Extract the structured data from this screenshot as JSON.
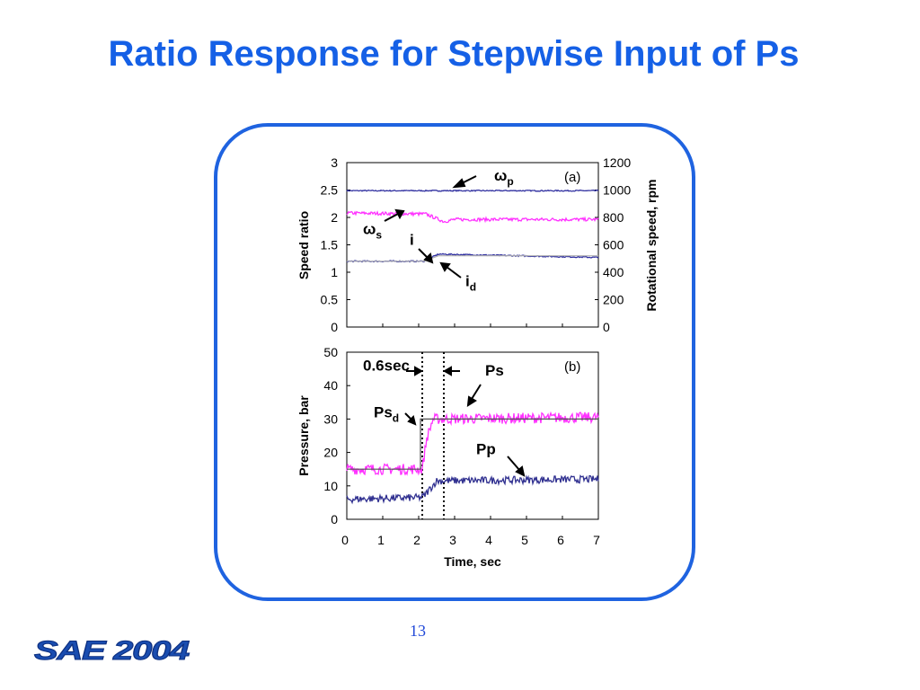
{
  "slide": {
    "title": "Ratio Response for Stepwise Input of Ps",
    "page_number": "13",
    "logo_text": "SAE 2004"
  },
  "chart_data": [
    {
      "id": "a",
      "type": "line",
      "panel_label": "(a)",
      "x_range": [
        0,
        7
      ],
      "ylabel": "Speed ratio",
      "ylim": [
        0,
        3
      ],
      "yticks": [
        "0",
        "0.5",
        "1",
        "1.5",
        "2",
        "2.5",
        "3"
      ],
      "y2label": "Rotational speed,  rpm",
      "y2lim": [
        0,
        1200
      ],
      "y2ticks": [
        "0",
        "200",
        "400",
        "600",
        "800",
        "1000",
        "1200"
      ],
      "series": [
        {
          "key": "omega_p",
          "axis": "y2",
          "color": "#3030a0",
          "x": [
            0,
            7
          ],
          "y": [
            995,
            995
          ],
          "noise": 4
        },
        {
          "key": "omega_s",
          "axis": "y2",
          "color": "#ff30ff",
          "x": [
            0,
            2.2,
            2.7,
            3.0,
            7
          ],
          "y": [
            832,
            825,
            770,
            785,
            785
          ],
          "noise": 12
        },
        {
          "key": "i",
          "axis": "y",
          "color": "#3030a0",
          "x": [
            0,
            2.15,
            2.55,
            7
          ],
          "y": [
            1.2,
            1.2,
            1.33,
            1.27
          ],
          "noise": 0.012
        },
        {
          "key": "i_d",
          "axis": "y",
          "color": "#b0b0b0",
          "x": [
            0,
            2.15,
            2.55,
            7
          ],
          "y": [
            1.2,
            1.2,
            1.3,
            1.3
          ],
          "noise": 0
        }
      ],
      "annotations": [
        {
          "symbol": "ω",
          "sub": "p",
          "x": 4.1,
          "y": 2.67,
          "axis": "y"
        },
        {
          "symbol": "ω",
          "sub": "s",
          "x": 0.45,
          "y": 1.7,
          "axis": "y"
        },
        {
          "symbol": "i",
          "sub": "",
          "x": 1.75,
          "y": 1.5,
          "axis": "y"
        },
        {
          "symbol": "i",
          "sub": "d",
          "x": 3.3,
          "y": 0.75,
          "axis": "y"
        }
      ]
    },
    {
      "id": "b",
      "type": "line",
      "panel_label": "(b)",
      "xlabel": "Time, sec",
      "xlim": [
        0,
        7
      ],
      "xticks": [
        "0",
        "1",
        "2",
        "3",
        "4",
        "5",
        "6",
        "7"
      ],
      "ylabel": "Pressure, bar",
      "ylim": [
        0,
        50
      ],
      "yticks": [
        "0",
        "10",
        "20",
        "30",
        "40",
        "50"
      ],
      "series": [
        {
          "key": "Ps",
          "color": "#ff30ff",
          "x": [
            0,
            2.1,
            2.22,
            2.4,
            7
          ],
          "y": [
            15,
            15,
            24,
            30,
            30.5
          ],
          "noise": 1.6
        },
        {
          "key": "Ps_d",
          "color": "#505050",
          "x": [
            0,
            2.05,
            2.05,
            7
          ],
          "y": [
            15,
            15,
            30,
            30
          ],
          "noise": 0
        },
        {
          "key": "Pp",
          "color": "#303090",
          "x": [
            0,
            2.05,
            2.15,
            2.5,
            7
          ],
          "y": [
            6,
            6.5,
            7,
            11.5,
            12
          ],
          "noise": 1.1
        }
      ],
      "vlines": [
        2.1,
        2.7
      ],
      "annotations": [
        {
          "symbol": "0.6sec",
          "sub": "",
          "x": 0.45,
          "y": 44.5
        },
        {
          "symbol": "Ps",
          "sub": "",
          "x": 3.85,
          "y": 43
        },
        {
          "symbol": "Ps",
          "sub": "d",
          "x": 0.75,
          "y": 30.5
        },
        {
          "symbol": "Pp",
          "sub": "",
          "x": 3.6,
          "y": 19.5
        }
      ]
    }
  ]
}
